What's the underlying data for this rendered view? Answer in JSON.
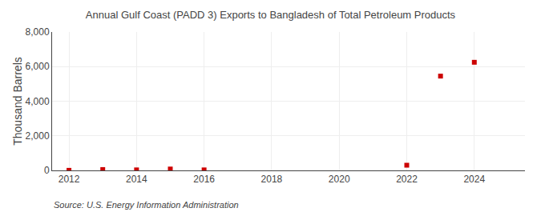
{
  "chart_data": {
    "type": "scatter",
    "title": "Annual Gulf Coast (PADD 3) Exports to Bangladesh of Total Petroleum Products",
    "ylabel": "Thousand Barrels",
    "annotations": [
      "Source: U.S. Energy Information Administration"
    ],
    "x": [
      2012,
      2013,
      2014,
      2015,
      2016,
      2022,
      2023,
      2024
    ],
    "values": [
      5,
      50,
      30,
      80,
      30,
      300,
      5450,
      6250
    ],
    "color": "#cc0000",
    "marker": "square",
    "xlim": [
      2011.5,
      2025.5
    ],
    "xticks": [
      2012,
      2014,
      2016,
      2018,
      2020,
      2022,
      2024
    ],
    "ylim": [
      0,
      8000
    ],
    "yticks": [
      0,
      {
        "value": 2000,
        "label": "2,000"
      },
      {
        "value": 4000,
        "label": "4,000"
      },
      {
        "value": 6000,
        "label": "6,000"
      },
      {
        "value": 8000,
        "label": "8,000"
      }
    ],
    "grid": true
  }
}
